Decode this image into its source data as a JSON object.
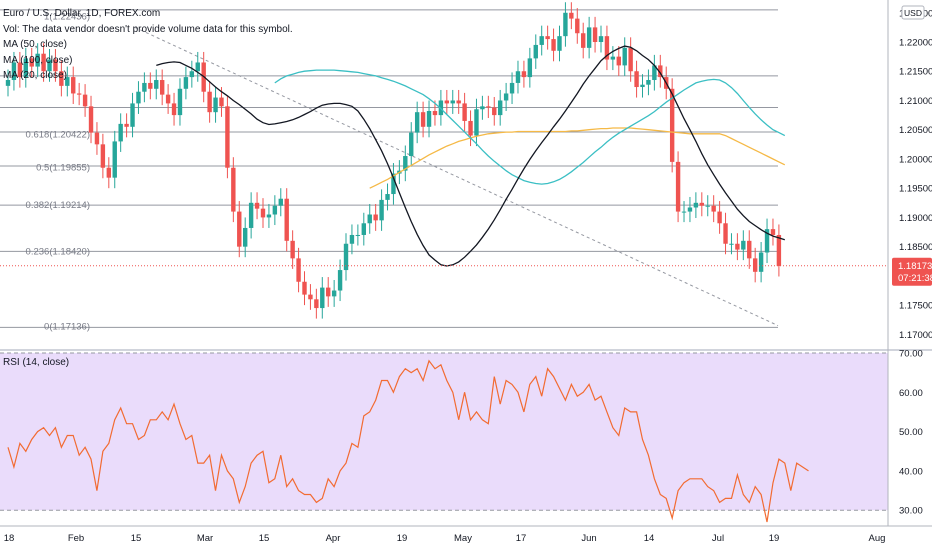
{
  "header": {
    "symbol": "Euro / U.S. Dollar, 1D, FOREX.com",
    "volume_note": "Vol: The data vendor doesn't provide volume data for this symbol.",
    "ma50": "MA (50, close)",
    "ma100": "MA (100, close)",
    "ma20": "MA (20, close)"
  },
  "currency_label": "USD",
  "price_tag": {
    "price": "1.18173",
    "countdown": "07:21:38"
  },
  "rsi_label": "RSI (14, close)",
  "colors": {
    "up": "#26a69a",
    "down": "#ef5350",
    "ma20": "#131722",
    "ma50": "#3bbfc4",
    "ma100": "#f5b946",
    "rsi_line": "#f26b32",
    "rsi_band": "#eadcfb",
    "price_tag": "#ef5350",
    "fib": "#787b86",
    "trend": "#9598a1"
  },
  "chart_data": [
    {
      "type": "candlestick",
      "title": "Euro / U.S. Dollar, 1D, FOREX.com",
      "ylabel": "USD",
      "ylim": [
        1.1675,
        1.2265
      ],
      "y_ticks": [
        "1.22500",
        "1.22000",
        "1.21500",
        "1.21000",
        "1.20500",
        "1.20000",
        "1.19500",
        "1.19000",
        "1.18500",
        "1.18000",
        "1.17500",
        "1.17000"
      ],
      "x_ticks": [
        "18",
        "Feb",
        "15",
        "Mar",
        "15",
        "Apr",
        "19",
        "May",
        "17",
        "Jun",
        "14",
        "Jul",
        "19",
        "Aug"
      ],
      "fib_levels": [
        {
          "label": "1(1.22436)",
          "value": 1.22436
        },
        {
          "label": "0.618(1.20422)",
          "value": 1.20422
        },
        {
          "label": "0.5(1.19855)",
          "value": 1.19855
        },
        {
          "label": "0.382(1.19214)",
          "value": 1.19214
        },
        {
          "label": "0.236(1.18420)",
          "value": 1.1842
        },
        {
          "label": "0(1.17136)",
          "value": 1.17136
        }
      ],
      "horizontal_lines": [
        1.2255,
        1.2142,
        1.2088,
        1.2046,
        1.1988,
        1.1921,
        1.1842,
        1.1712
      ],
      "trendline": {
        "from": 1.2225,
        "to": 1.1715,
        "style": "dashed"
      },
      "last_price": 1.18173,
      "closes": [
        1.2135,
        1.2165,
        1.214,
        1.2172,
        1.2158,
        1.218,
        1.215,
        1.217,
        1.215,
        1.2125,
        1.214,
        1.2112,
        1.211,
        1.209,
        1.2045,
        1.2025,
        1.1985,
        1.1968,
        1.203,
        1.206,
        1.2055,
        1.2095,
        1.2115,
        1.213,
        1.212,
        1.2135,
        1.211,
        1.2095,
        1.2075,
        1.212,
        1.214,
        1.215,
        1.2165,
        1.2115,
        1.208,
        1.2105,
        1.209,
        1.1985,
        1.191,
        1.185,
        1.1882,
        1.1925,
        1.1915,
        1.19,
        1.1905,
        1.192,
        1.1932,
        1.186,
        1.183,
        1.179,
        1.1768,
        1.176,
        1.1745,
        1.178,
        1.1765,
        1.1775,
        1.181,
        1.1855,
        1.187,
        1.187,
        1.189,
        1.1905,
        1.1895,
        1.193,
        1.194,
        1.1975,
        1.198,
        1.2005,
        1.2045,
        1.208,
        1.2055,
        1.2082,
        1.2075,
        1.21,
        1.2095,
        1.21,
        1.2095,
        1.2065,
        1.204,
        1.2085,
        1.209,
        1.2088,
        1.2075,
        1.21,
        1.2112,
        1.213,
        1.215,
        1.214,
        1.2172,
        1.2195,
        1.221,
        1.2205,
        1.2185,
        1.221,
        1.225,
        1.224,
        1.2215,
        1.219,
        1.2225,
        1.22,
        1.221,
        1.217,
        1.2175,
        1.216,
        1.219,
        1.215,
        1.2123,
        1.2127,
        1.2135,
        1.216,
        1.214,
        1.212,
        1.1995,
        1.191,
        1.191,
        1.1917,
        1.1925,
        1.192,
        1.192,
        1.191,
        1.189,
        1.1855,
        1.1855,
        1.1845,
        1.186,
        1.183,
        1.1807,
        1.184,
        1.188,
        1.187,
        1.1817
      ],
      "ma20": [
        1.216,
        1.2163,
        1.2165,
        1.2166,
        1.2165,
        1.216,
        1.2155,
        1.2148,
        1.2141,
        1.2132,
        1.2123,
        1.2115,
        1.2108,
        1.21,
        1.2093,
        1.2085,
        1.2077,
        1.2068,
        1.2062,
        1.2059,
        1.206,
        1.2062,
        1.2064,
        1.2067,
        1.2071,
        1.2076,
        1.2081,
        1.2087,
        1.2092,
        1.2094,
        1.2095,
        1.2095,
        1.2093,
        1.209,
        1.2082,
        1.2068,
        1.2052,
        1.2033,
        1.2014,
        1.1992,
        1.1968,
        1.1942,
        1.1917,
        1.1893,
        1.1871,
        1.1852,
        1.1836,
        1.1827,
        1.1819,
        1.1817,
        1.1819,
        1.1824,
        1.1832,
        1.1842,
        1.1853,
        1.1866,
        1.188,
        1.1896,
        1.1913,
        1.1931,
        1.1948,
        1.1966,
        1.1983,
        1.1999,
        1.2014,
        1.2028,
        1.2041,
        1.2055,
        1.2068,
        1.2082,
        1.2097,
        1.2112,
        1.2128,
        1.2142,
        1.2155,
        1.2168,
        1.2177,
        1.2184,
        1.2189,
        1.2193,
        1.2191,
        1.2185,
        1.2177,
        1.217,
        1.216,
        1.2147,
        1.213,
        1.2111,
        1.209,
        1.2069,
        1.205,
        1.203,
        1.2009,
        1.199,
        1.1973,
        1.1957,
        1.1942,
        1.1928,
        1.1914,
        1.1903,
        1.1893,
        1.1886,
        1.1879,
        1.1873,
        1.1868,
        1.1865,
        1.1862
      ],
      "ma20_start_index": 25,
      "ma50": [
        1.213,
        1.2137,
        1.2142,
        1.2145,
        1.2148,
        1.215,
        1.2151,
        1.2152,
        1.2152,
        1.2152,
        1.2152,
        1.2151,
        1.215,
        1.2149,
        1.2148,
        1.2146,
        1.2144,
        1.2142,
        1.2139,
        1.2136,
        1.2133,
        1.2129,
        1.2125,
        1.212,
        1.2115,
        1.211,
        1.2103,
        1.2095,
        1.2086,
        1.2076,
        1.2066,
        1.2056,
        1.2046,
        1.2036,
        1.2026,
        1.2015,
        1.2005,
        1.1996,
        1.1988,
        1.198,
        1.1973,
        1.1968,
        1.1963,
        1.196,
        1.1958,
        1.1957,
        1.1958,
        1.1961,
        1.1965,
        1.1971,
        1.1978,
        1.1986,
        1.1994,
        1.2003,
        1.2012,
        1.202,
        1.2029,
        1.2037,
        1.2044,
        1.205,
        1.2056,
        1.2062,
        1.2068,
        1.2074,
        1.2081,
        1.2089,
        1.2097,
        1.2104,
        1.2111,
        1.2118,
        1.2124,
        1.213,
        1.2133,
        1.2135,
        1.2136,
        1.2135,
        1.213,
        1.2122,
        1.2112,
        1.21,
        1.2088,
        1.2077,
        1.2067,
        1.2058,
        1.205,
        1.2045,
        1.204
      ],
      "ma50_start_index": 45,
      "ma100": [
        1.195,
        1.1955,
        1.196,
        1.1965,
        1.1971,
        1.1977,
        1.1983,
        1.1989,
        1.1995,
        1.2001,
        1.2007,
        1.2012,
        1.2017,
        1.2022,
        1.2026,
        1.203,
        1.2033,
        1.2036,
        1.2039,
        1.2041,
        1.2043,
        1.2044,
        1.2045,
        1.2046,
        1.2046,
        1.2047,
        1.2047,
        1.2047,
        1.2047,
        1.2047,
        1.2047,
        1.2047,
        1.2047,
        1.2047,
        1.2048,
        1.2048,
        1.2049,
        1.205,
        1.2051,
        1.2052,
        1.2052,
        1.2053,
        1.2053,
        1.2053,
        1.2053,
        1.2052,
        1.2051,
        1.205,
        1.2049,
        1.2048,
        1.2047,
        1.2046,
        1.2045,
        1.2044,
        1.2043,
        1.2043,
        1.2043,
        1.2043,
        1.2043,
        1.2043,
        1.204,
        1.2035,
        1.203,
        1.2025,
        1.202,
        1.2015,
        1.201,
        1.2005,
        1.2,
        1.1995,
        1.199
      ],
      "ma100_start_index": 61
    },
    {
      "type": "line",
      "title": "RSI (14, close)",
      "ylim": [
        26.5,
        70.5
      ],
      "y_ticks": [
        "70.00",
        "60.00",
        "50.00",
        "40.00",
        "30.00"
      ],
      "band": [
        30,
        70
      ],
      "values": [
        46,
        41,
        47,
        45,
        48,
        50,
        51,
        49,
        51,
        46,
        49,
        49,
        44,
        46,
        43,
        35,
        45,
        47,
        53,
        56,
        52,
        52,
        48,
        49,
        53,
        53,
        55,
        53,
        57,
        52,
        48,
        49,
        42,
        42,
        44,
        35,
        44,
        40,
        38,
        32,
        36,
        42,
        44,
        45,
        37,
        38,
        44,
        36,
        38,
        35,
        34,
        34,
        32,
        33,
        38,
        36,
        40,
        42,
        47,
        46,
        54,
        55,
        58,
        63,
        63,
        60,
        64,
        66,
        65,
        66,
        63,
        68,
        66,
        67,
        63,
        60,
        53,
        60,
        53,
        55,
        53,
        52,
        64,
        57,
        63,
        62,
        60,
        55,
        62,
        64,
        59,
        66,
        64,
        61,
        58,
        62,
        59,
        60,
        62,
        58,
        59,
        55,
        51,
        49,
        56,
        55,
        55,
        48,
        44,
        38,
        34,
        33,
        28,
        35,
        37,
        38,
        38,
        38,
        36,
        35,
        32,
        33,
        33,
        39,
        34,
        32,
        36,
        34,
        27,
        37,
        43,
        42,
        35,
        42,
        41,
        40
      ]
    }
  ]
}
